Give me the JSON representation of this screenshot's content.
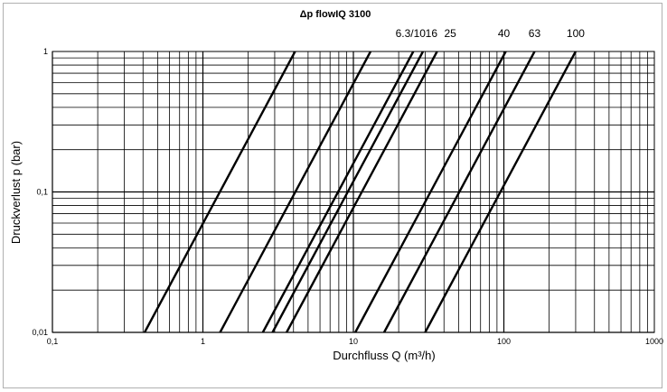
{
  "chart_data": {
    "type": "line",
    "title": "Δp flowIQ 3100",
    "xlabel": "Durchfluss Q (m³/h)",
    "ylabel": "Druckverlust p (bar)",
    "x_scale": "log",
    "y_scale": "log",
    "xlim": [
      0.1,
      1000
    ],
    "ylim": [
      0.01,
      1
    ],
    "x_ticks": [
      0.1,
      1,
      10,
      100,
      1000
    ],
    "x_tick_labels": [
      "0,1",
      "1",
      "10",
      "100",
      "1000"
    ],
    "y_ticks": [
      0.01,
      0.1,
      1
    ],
    "y_tick_labels": [
      "0,01",
      "0,1",
      "1"
    ],
    "grid": true,
    "series": [
      {
        "x": [
          0.41,
          4.1
        ],
        "y": [
          0.01,
          1
        ]
      },
      {
        "x": [
          1.3,
          13
        ],
        "y": [
          0.01,
          1
        ]
      },
      {
        "name": "6.3/10",
        "x": [
          2.5,
          25
        ],
        "y": [
          0.01,
          1
        ]
      },
      {
        "name": "16",
        "x": [
          2.9,
          29
        ],
        "y": [
          0.01,
          1
        ]
      },
      {
        "name": "25",
        "x": [
          3.6,
          36
        ],
        "y": [
          0.01,
          1
        ]
      },
      {
        "name": "40",
        "x": [
          10.3,
          103
        ],
        "y": [
          0.01,
          1
        ]
      },
      {
        "name": "63",
        "x": [
          16,
          160
        ],
        "y": [
          0.01,
          1
        ]
      },
      {
        "name": "100",
        "x": [
          30,
          300
        ],
        "y": [
          0.01,
          1
        ]
      }
    ],
    "series_labels": [
      {
        "text": "6.3/10",
        "x": 24
      },
      {
        "text": "16",
        "x": 33
      },
      {
        "text": "25",
        "x": 44
      },
      {
        "text": "40",
        "x": 100
      },
      {
        "text": "63",
        "x": 160
      },
      {
        "text": "100",
        "x": 300
      }
    ]
  }
}
